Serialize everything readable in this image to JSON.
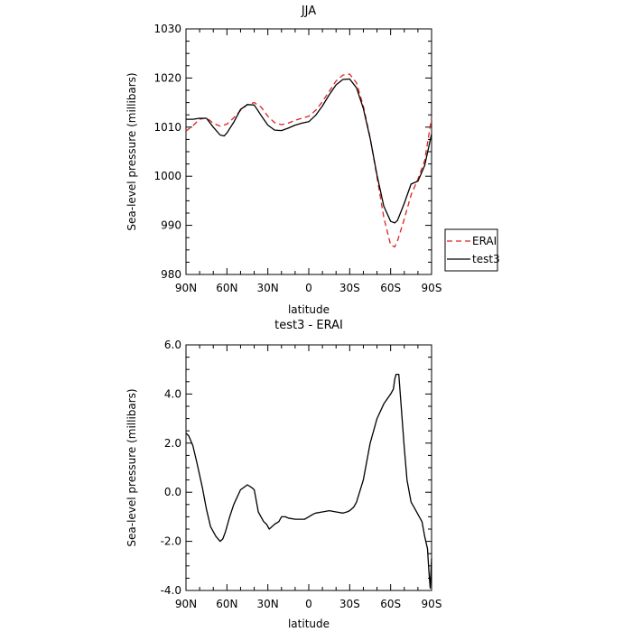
{
  "chart_data": [
    {
      "type": "line",
      "title": "JJA",
      "xlabel": "latitude",
      "ylabel": "Sea-level pressure (millibars)",
      "xlim": [
        90,
        -90
      ],
      "ylim": [
        980,
        1030
      ],
      "xticks": [
        {
          "value": 90,
          "label": "90N"
        },
        {
          "value": 60,
          "label": "60N"
        },
        {
          "value": 30,
          "label": "30N"
        },
        {
          "value": 0,
          "label": "0"
        },
        {
          "value": -30,
          "label": "30S"
        },
        {
          "value": -60,
          "label": "60S"
        },
        {
          "value": -90,
          "label": "90S"
        }
      ],
      "yticks": [
        {
          "value": 980,
          "label": "980"
        },
        {
          "value": 990,
          "label": "990"
        },
        {
          "value": 1000,
          "label": "1000"
        },
        {
          "value": 1010,
          "label": "1010"
        },
        {
          "value": 1020,
          "label": "1020"
        },
        {
          "value": 1030,
          "label": "1030"
        }
      ],
      "legend_position": "right",
      "series": [
        {
          "name": "ERAI",
          "color": "#e02020",
          "dash": "dashed",
          "x": [
            90,
            85,
            80,
            75,
            70,
            65,
            60,
            55,
            50,
            45,
            40,
            35,
            30,
            25,
            20,
            15,
            10,
            5,
            0,
            -5,
            -10,
            -15,
            -20,
            -25,
            -30,
            -35,
            -40,
            -45,
            -50,
            -55,
            -60,
            -63,
            -65,
            -70,
            -75,
            -80,
            -85,
            -90
          ],
          "values": [
            1009.2,
            1010.3,
            1011.6,
            1011.9,
            1010.8,
            1010.2,
            1010.6,
            1011.9,
            1013.4,
            1014.6,
            1015.0,
            1014.1,
            1012.2,
            1010.9,
            1010.5,
            1010.8,
            1011.4,
            1011.8,
            1012.2,
            1013.4,
            1015.2,
            1017.3,
            1019.4,
            1020.6,
            1020.8,
            1019.0,
            1014.3,
            1007.8,
            999.8,
            991.6,
            986.0,
            985.6,
            986.8,
            991.3,
            996.2,
            999.4,
            1003.2,
            1011.9
          ]
        },
        {
          "name": "test3",
          "color": "#000000",
          "dash": "solid",
          "x": [
            90,
            85,
            80,
            75,
            70,
            65,
            62,
            60,
            55,
            50,
            45,
            40,
            35,
            30,
            25,
            20,
            15,
            10,
            5,
            0,
            -5,
            -10,
            -15,
            -20,
            -25,
            -30,
            -35,
            -40,
            -45,
            -50,
            -55,
            -60,
            -63,
            -65,
            -70,
            -75,
            -80,
            -85,
            -90
          ],
          "values": [
            1011.6,
            1011.6,
            1011.8,
            1011.8,
            1010.0,
            1008.4,
            1008.2,
            1008.8,
            1011.0,
            1013.6,
            1014.6,
            1014.5,
            1012.4,
            1010.4,
            1009.4,
            1009.3,
            1009.8,
            1010.4,
            1010.8,
            1011.1,
            1012.4,
            1014.3,
            1016.6,
            1018.6,
            1019.7,
            1019.8,
            1018.0,
            1013.8,
            1007.7,
            1000.2,
            993.9,
            990.8,
            990.5,
            991.0,
            994.5,
            998.4,
            999.0,
            1002.2,
            1008.6
          ]
        }
      ]
    },
    {
      "type": "line",
      "title": "test3 - ERAI",
      "xlabel": "latitude",
      "ylabel": "Sea-level pressure (millibars)",
      "xlim": [
        90,
        -90
      ],
      "ylim": [
        -4.0,
        6.0
      ],
      "xticks": [
        {
          "value": 90,
          "label": "90N"
        },
        {
          "value": 60,
          "label": "60N"
        },
        {
          "value": 30,
          "label": "30N"
        },
        {
          "value": 0,
          "label": "0"
        },
        {
          "value": -30,
          "label": "30S"
        },
        {
          "value": -60,
          "label": "60S"
        },
        {
          "value": -90,
          "label": "90S"
        }
      ],
      "yticks": [
        {
          "value": -4,
          "label": "-4.0"
        },
        {
          "value": -2,
          "label": "-2.0"
        },
        {
          "value": 0,
          "label": "0.0"
        },
        {
          "value": 2,
          "label": "2.0"
        },
        {
          "value": 4,
          "label": "4.0"
        },
        {
          "value": 6,
          "label": "6.0"
        }
      ],
      "series": [
        {
          "color": "#000000",
          "dash": "solid",
          "x": [
            90,
            88,
            85,
            82,
            78,
            75,
            72,
            68,
            65,
            63,
            61,
            58,
            55,
            50,
            45,
            42,
            40,
            38,
            37,
            35,
            33,
            31,
            29,
            27,
            25,
            22,
            20,
            17,
            15,
            10,
            5,
            3,
            0,
            -3,
            -5,
            -10,
            -15,
            -20,
            -25,
            -28,
            -30,
            -33,
            -35,
            -40,
            -45,
            -50,
            -55,
            -60,
            -62,
            -63,
            -64,
            -66,
            -70,
            -72,
            -75,
            -78,
            -80,
            -83,
            -85,
            -87,
            -88,
            -89,
            -90
          ],
          "values": [
            2.4,
            2.3,
            1.9,
            1.2,
            0.2,
            -0.7,
            -1.4,
            -1.8,
            -2.0,
            -1.9,
            -1.6,
            -1.0,
            -0.5,
            0.1,
            0.3,
            0.2,
            0.1,
            -0.5,
            -0.8,
            -1.0,
            -1.2,
            -1.3,
            -1.5,
            -1.4,
            -1.3,
            -1.2,
            -1.0,
            -1.0,
            -1.05,
            -1.1,
            -1.1,
            -1.1,
            -1.0,
            -0.9,
            -0.85,
            -0.8,
            -0.75,
            -0.8,
            -0.85,
            -0.8,
            -0.75,
            -0.6,
            -0.4,
            0.5,
            2.0,
            3.0,
            3.6,
            4.0,
            4.2,
            4.6,
            4.8,
            4.8,
            1.8,
            0.5,
            -0.4,
            -0.7,
            -0.9,
            -1.2,
            -1.8,
            -2.3,
            -3.2,
            -3.9,
            -2.7
          ]
        }
      ]
    }
  ]
}
